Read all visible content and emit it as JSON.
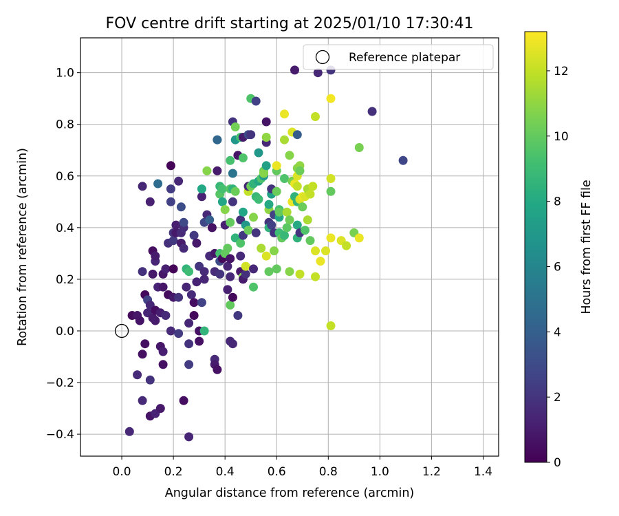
{
  "chart_data": {
    "type": "scatter",
    "title": "FOV centre drift starting at 2025/01/10 17:30:41",
    "xlabel": "Angular distance from reference (arcmin)",
    "ylabel": "Rotation from reference (arcmin)",
    "xlim": [
      -0.16,
      1.46
    ],
    "ylim": [
      -0.485,
      1.135
    ],
    "xticks": [
      "0.0",
      "0.2",
      "0.4",
      "0.6",
      "0.8",
      "1.0",
      "1.2",
      "1.4"
    ],
    "yticks": [
      "−0.4",
      "−0.2",
      "0.0",
      "0.2",
      "0.4",
      "0.6",
      "0.8",
      "1.0"
    ],
    "grid": true,
    "legend": {
      "placement": "top-right",
      "entries": [
        "Reference platepar"
      ]
    },
    "reference_point": {
      "x": 0.0,
      "y": 0.0
    },
    "colorbar": {
      "label": "Hours from first FF file",
      "range": [
        0,
        13.2
      ],
      "ticks": [
        "0",
        "2",
        "4",
        "6",
        "8",
        "10",
        "12"
      ],
      "colormap": "viridis"
    },
    "points": [
      [
        0.03,
        -0.39,
        1.5
      ],
      [
        0.04,
        0.06,
        0.4
      ],
      [
        0.06,
        0.06,
        0.8
      ],
      [
        0.06,
        -0.17,
        1.6
      ],
      [
        0.07,
        0.04,
        0.7
      ],
      [
        0.08,
        0.23,
        1.8
      ],
      [
        0.08,
        -0.09,
        0.6
      ],
      [
        0.08,
        -0.27,
        1.6
      ],
      [
        0.08,
        0.56,
        1.5
      ],
      [
        0.09,
        0.14,
        0.3
      ],
      [
        0.09,
        -0.05,
        0.5
      ],
      [
        0.1,
        0.12,
        2.6
      ],
      [
        0.1,
        0.07,
        1.4
      ],
      [
        0.11,
        0.1,
        1.5
      ],
      [
        0.11,
        -0.19,
        1.9
      ],
      [
        0.11,
        -0.33,
        0.7
      ],
      [
        0.11,
        0.5,
        1.2
      ],
      [
        0.12,
        0.05,
        1.0
      ],
      [
        0.12,
        0.22,
        0.9
      ],
      [
        0.12,
        0.31,
        0.5
      ],
      [
        0.13,
        0.08,
        0.5
      ],
      [
        0.13,
        0.04,
        1.0
      ],
      [
        0.13,
        -0.32,
        1.3
      ],
      [
        0.13,
        0.27,
        1.4
      ],
      [
        0.13,
        0.29,
        1.0
      ],
      [
        0.14,
        0.17,
        1.3
      ],
      [
        0.14,
        0.57,
        4.7
      ],
      [
        0.15,
        0.07,
        1.1
      ],
      [
        0.15,
        -0.06,
        0.8
      ],
      [
        0.15,
        -0.3,
        0.9
      ],
      [
        0.16,
        -0.08,
        1.1
      ],
      [
        0.16,
        0.17,
        0.8
      ],
      [
        0.16,
        0.22,
        0.8
      ],
      [
        0.16,
        -0.13,
        0.6
      ],
      [
        0.17,
        0.06,
        1.6
      ],
      [
        0.17,
        0.24,
        1.2
      ],
      [
        0.18,
        0.14,
        0.4
      ],
      [
        0.18,
        0.34,
        1.8
      ],
      [
        0.19,
        0.55,
        2.3
      ],
      [
        0.19,
        0.64,
        0.1
      ],
      [
        0.19,
        0.5,
        2.5
      ],
      [
        0.19,
        0.0,
        1.6
      ],
      [
        0.2,
        0.13,
        0.9
      ],
      [
        0.2,
        0.24,
        0.2
      ],
      [
        0.2,
        0.38,
        1.9
      ],
      [
        0.2,
        0.35,
        2.2
      ],
      [
        0.21,
        0.41,
        1.1
      ],
      [
        0.21,
        0.38,
        0.9
      ],
      [
        0.22,
        0.13,
        1.9
      ],
      [
        0.22,
        -0.01,
        2.3
      ],
      [
        0.22,
        0.58,
        1.5
      ],
      [
        0.23,
        0.34,
        1.0
      ],
      [
        0.23,
        0.48,
        3.1
      ],
      [
        0.23,
        0.38,
        1.6
      ],
      [
        0.24,
        0.4,
        1.7
      ],
      [
        0.24,
        0.32,
        1.6
      ],
      [
        0.24,
        0.42,
        2.9
      ],
      [
        0.24,
        -0.27,
        0.5
      ],
      [
        0.25,
        0.17,
        1.4
      ],
      [
        0.25,
        0.24,
        8.6
      ],
      [
        0.26,
        0.23,
        9.0
      ],
      [
        0.26,
        0.03,
        1.4
      ],
      [
        0.26,
        -0.05,
        1.9
      ],
      [
        0.26,
        -0.13,
        2.3
      ],
      [
        0.26,
        -0.41,
        1.4
      ],
      [
        0.27,
        0.14,
        1.6
      ],
      [
        0.28,
        0.11,
        0.5
      ],
      [
        0.28,
        0.37,
        2.2
      ],
      [
        0.28,
        0.06,
        0.3
      ],
      [
        0.29,
        0.19,
        1.3
      ],
      [
        0.29,
        0.34,
        0.9
      ],
      [
        0.3,
        0.0,
        0.6
      ],
      [
        0.3,
        -0.04,
        0.6
      ],
      [
        0.3,
        0.25,
        2.0
      ],
      [
        0.31,
        0.11,
        2.6
      ],
      [
        0.31,
        0.52,
        1.2
      ],
      [
        0.31,
        0.55,
        7.9
      ],
      [
        0.32,
        0.23,
        1.6
      ],
      [
        0.32,
        0.2,
        1.4
      ],
      [
        0.32,
        0.42,
        2.8
      ],
      [
        0.32,
        0.0,
        8.6
      ],
      [
        0.33,
        0.45,
        1.5
      ],
      [
        0.33,
        0.62,
        10.8
      ],
      [
        0.34,
        0.29,
        1.6
      ],
      [
        0.34,
        0.43,
        4.0
      ],
      [
        0.35,
        0.4,
        0.6
      ],
      [
        0.36,
        0.3,
        0.8
      ],
      [
        0.36,
        0.23,
        1.6
      ],
      [
        0.36,
        -0.11,
        1.6
      ],
      [
        0.36,
        -0.13,
        1.0
      ],
      [
        0.37,
        -0.15,
        0.6
      ],
      [
        0.37,
        0.74,
        5.0
      ],
      [
        0.37,
        0.74,
        4.4
      ],
      [
        0.37,
        0.62,
        1.0
      ],
      [
        0.38,
        0.56,
        8.8
      ],
      [
        0.38,
        0.53,
        9.7
      ],
      [
        0.38,
        0.27,
        3.0
      ],
      [
        0.38,
        0.3,
        9.3
      ],
      [
        0.38,
        0.22,
        1.9
      ],
      [
        0.39,
        0.5,
        7.8
      ],
      [
        0.39,
        0.28,
        0.3
      ],
      [
        0.39,
        0.55,
        9.3
      ],
      [
        0.4,
        0.47,
        10.8
      ],
      [
        0.4,
        0.41,
        1.2
      ],
      [
        0.4,
        0.3,
        10.0
      ],
      [
        0.41,
        0.32,
        10.0
      ],
      [
        0.41,
        0.25,
        1.4
      ],
      [
        0.41,
        0.16,
        1.2
      ],
      [
        0.42,
        0.21,
        1.5
      ],
      [
        0.42,
        0.28,
        0.7
      ],
      [
        0.42,
        0.1,
        10.0
      ],
      [
        0.42,
        -0.04,
        1.5
      ],
      [
        0.42,
        0.55,
        9.7
      ],
      [
        0.42,
        0.42,
        10.0
      ],
      [
        0.42,
        0.66,
        9.3
      ],
      [
        0.43,
        0.81,
        2.0
      ],
      [
        0.43,
        -0.05,
        1.5
      ],
      [
        0.43,
        0.13,
        0.3
      ],
      [
        0.43,
        0.55,
        8.5
      ],
      [
        0.43,
        0.61,
        5.0
      ],
      [
        0.43,
        0.5,
        2.0
      ],
      [
        0.44,
        0.79,
        10.4
      ],
      [
        0.44,
        0.74,
        7.0
      ],
      [
        0.44,
        0.36,
        8.5
      ],
      [
        0.44,
        0.54,
        10.2
      ],
      [
        0.45,
        0.68,
        0.7
      ],
      [
        0.45,
        0.06,
        2.2
      ],
      [
        0.46,
        0.23,
        0.8
      ],
      [
        0.46,
        0.34,
        9.5
      ],
      [
        0.46,
        0.75,
        9.3
      ],
      [
        0.46,
        0.43,
        1.8
      ],
      [
        0.46,
        0.29,
        1.6
      ],
      [
        0.47,
        0.21,
        10.8
      ],
      [
        0.47,
        0.67,
        9.5
      ],
      [
        0.47,
        0.37,
        2.2
      ],
      [
        0.47,
        0.46,
        7.8
      ],
      [
        0.47,
        0.75,
        1.0
      ],
      [
        0.47,
        0.2,
        1.0
      ],
      [
        0.48,
        0.22,
        1.8
      ],
      [
        0.48,
        0.25,
        12.3
      ],
      [
        0.48,
        0.41,
        7.0
      ],
      [
        0.49,
        0.39,
        10.2
      ],
      [
        0.49,
        0.54,
        12.0
      ],
      [
        0.49,
        0.56,
        1.5
      ],
      [
        0.49,
        0.76,
        3.0
      ],
      [
        0.5,
        0.9,
        9.5
      ],
      [
        0.5,
        0.76,
        2.0
      ],
      [
        0.5,
        0.56,
        10.2
      ],
      [
        0.51,
        0.44,
        10.8
      ],
      [
        0.51,
        0.57,
        8.5
      ],
      [
        0.51,
        0.17,
        9.5
      ],
      [
        0.51,
        0.24,
        1.5
      ],
      [
        0.52,
        0.52,
        8.8
      ],
      [
        0.52,
        0.89,
        2.5
      ],
      [
        0.52,
        0.38,
        2.0
      ],
      [
        0.53,
        0.69,
        7.0
      ],
      [
        0.53,
        0.58,
        7.8
      ],
      [
        0.53,
        0.51,
        9.0
      ],
      [
        0.54,
        0.32,
        11.5
      ],
      [
        0.54,
        0.59,
        9.5
      ],
      [
        0.55,
        0.6,
        7.0
      ],
      [
        0.55,
        0.61,
        8.8
      ],
      [
        0.55,
        0.62,
        10.2
      ],
      [
        0.55,
        0.61,
        10.8
      ],
      [
        0.56,
        0.64,
        7.5
      ],
      [
        0.56,
        0.29,
        12.5
      ],
      [
        0.56,
        0.73,
        1.5
      ],
      [
        0.56,
        0.81,
        0.7
      ],
      [
        0.56,
        0.75,
        11.0
      ],
      [
        0.57,
        0.42,
        2.0
      ],
      [
        0.57,
        0.47,
        11.0
      ],
      [
        0.57,
        0.4,
        8.5
      ],
      [
        0.57,
        0.49,
        8.0
      ],
      [
        0.57,
        0.23,
        10.0
      ],
      [
        0.58,
        0.53,
        7.5
      ],
      [
        0.58,
        0.55,
        2.0
      ],
      [
        0.58,
        0.41,
        2.5
      ],
      [
        0.59,
        0.45,
        2.5
      ],
      [
        0.59,
        0.31,
        10.8
      ],
      [
        0.59,
        0.38,
        2.0
      ],
      [
        0.6,
        0.62,
        10.0
      ],
      [
        0.6,
        0.54,
        10.2
      ],
      [
        0.6,
        0.24,
        10.0
      ],
      [
        0.6,
        0.64,
        12.8
      ],
      [
        0.61,
        0.47,
        9.3
      ],
      [
        0.61,
        0.44,
        7.8
      ],
      [
        0.61,
        0.38,
        9.0
      ],
      [
        0.61,
        0.46,
        10.0
      ],
      [
        0.62,
        0.36,
        10.0
      ],
      [
        0.63,
        0.84,
        12.8
      ],
      [
        0.63,
        0.59,
        9.5
      ],
      [
        0.63,
        0.74,
        11.5
      ],
      [
        0.63,
        0.37,
        8.8
      ],
      [
        0.64,
        0.46,
        11.5
      ],
      [
        0.64,
        0.4,
        9.8
      ],
      [
        0.65,
        0.23,
        10.8
      ],
      [
        0.65,
        0.68,
        10.8
      ],
      [
        0.65,
        0.43,
        10.3
      ],
      [
        0.66,
        0.58,
        10.5
      ],
      [
        0.66,
        0.5,
        12.8
      ],
      [
        0.66,
        0.77,
        12.5
      ],
      [
        0.67,
        0.52,
        8.5
      ],
      [
        0.67,
        1.01,
        1.0
      ],
      [
        0.67,
        0.57,
        12.8
      ],
      [
        0.68,
        0.56,
        12.0
      ],
      [
        0.68,
        0.63,
        10.8
      ],
      [
        0.68,
        0.6,
        12.5
      ],
      [
        0.68,
        0.76,
        3.8
      ],
      [
        0.68,
        0.41,
        8.0
      ],
      [
        0.68,
        0.36,
        8.5
      ],
      [
        0.68,
        0.5,
        8.8
      ],
      [
        0.69,
        0.22,
        12.0
      ],
      [
        0.69,
        0.64,
        11.0
      ],
      [
        0.69,
        0.38,
        2.0
      ],
      [
        0.69,
        0.62,
        10.2
      ],
      [
        0.69,
        0.51,
        12.5
      ],
      [
        0.7,
        0.48,
        10.2
      ],
      [
        0.7,
        0.52,
        12.8
      ],
      [
        0.71,
        0.52,
        12.5
      ],
      [
        0.71,
        0.39,
        9.5
      ],
      [
        0.72,
        0.43,
        11.5
      ],
      [
        0.72,
        0.55,
        11.5
      ],
      [
        0.73,
        0.53,
        12.0
      ],
      [
        0.73,
        0.35,
        10.0
      ],
      [
        0.74,
        0.56,
        12.0
      ],
      [
        0.75,
        0.83,
        12.0
      ],
      [
        0.75,
        0.21,
        12.0
      ],
      [
        0.75,
        0.31,
        12.5
      ],
      [
        0.76,
        1.0,
        1.5
      ],
      [
        0.77,
        0.27,
        12.8
      ],
      [
        0.79,
        0.31,
        12.5
      ],
      [
        0.81,
        0.36,
        12.8
      ],
      [
        0.81,
        0.59,
        12.3
      ],
      [
        0.81,
        0.54,
        10.0
      ],
      [
        0.81,
        0.9,
        13.0
      ],
      [
        0.81,
        1.01,
        2.0
      ],
      [
        0.81,
        0.02,
        12.0
      ],
      [
        0.85,
        0.35,
        12.5
      ],
      [
        0.87,
        0.33,
        12.0
      ],
      [
        0.9,
        0.38,
        10.5
      ],
      [
        0.92,
        0.36,
        12.8
      ],
      [
        0.92,
        0.71,
        10.5
      ],
      [
        0.97,
        0.85,
        1.8
      ],
      [
        1.09,
        0.66,
        2.8
      ]
    ]
  }
}
